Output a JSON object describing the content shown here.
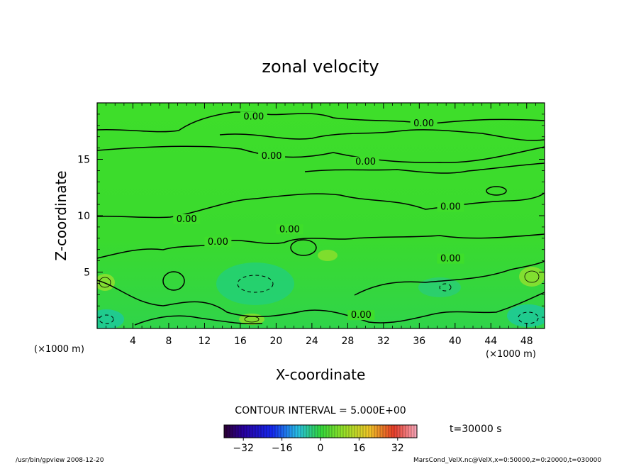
{
  "chart_data": {
    "type": "heatmap",
    "title": "zonal velocity",
    "xlabel": "X-coordinate",
    "ylabel": "Z-coordinate",
    "x_unit": "(×1000 m)",
    "y_unit": "(×1000 m)",
    "xlim": [
      0,
      50
    ],
    "ylim": [
      0,
      20
    ],
    "x_ticks": [
      4,
      8,
      12,
      16,
      20,
      24,
      28,
      32,
      36,
      40,
      44,
      48
    ],
    "y_ticks": [
      5,
      10,
      15
    ],
    "contour_label": "0.00",
    "contour_labels": [
      {
        "text": "0.00",
        "x": 17.5,
        "z": 18.6
      },
      {
        "text": "0.00",
        "x": 36.5,
        "z": 18.0
      },
      {
        "text": "0.00",
        "x": 19.5,
        "z": 15.1
      },
      {
        "text": "0.00",
        "x": 30.0,
        "z": 14.6
      },
      {
        "text": "0.00",
        "x": 39.5,
        "z": 10.6
      },
      {
        "text": "0.00",
        "x": 10.0,
        "z": 9.5
      },
      {
        "text": "0.00",
        "x": 21.5,
        "z": 8.6
      },
      {
        "text": "0.00",
        "x": 13.5,
        "z": 7.5
      },
      {
        "text": "0.00",
        "x": 39.5,
        "z": 6.0
      },
      {
        "text": "0.00",
        "x": 29.5,
        "z": 1.0
      }
    ],
    "contour_interval": "CONTOUR INTERVAL = 5.000E+00",
    "colorbar": {
      "min": -40,
      "max": 40,
      "ticks": [
        -32,
        -16,
        0,
        16,
        32
      ],
      "tick_labels": [
        "−32",
        "−16",
        "0",
        "16",
        "32"
      ]
    },
    "time_label": "t=30000 s",
    "footer_left": "/usr/bin/gpview  2008-12-20",
    "footer_right": "MarsCond_VelX.nc@VelX,x=0:50000,z=0:20000,t=030000"
  }
}
